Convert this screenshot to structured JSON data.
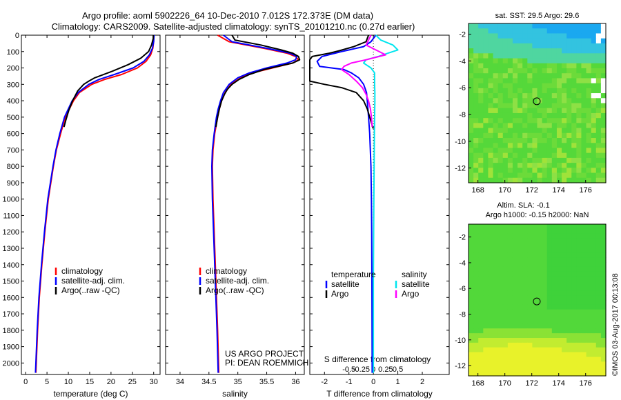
{
  "title_line1": "Argo profile: aoml 5902226_64 10-Dec-2010 7.012S 172.373E (DM data)",
  "title_line2": "Climatology: CARS2009. Satellite-adjusted climatology: synTS_20101210.nc (0.27d earlier)",
  "side_label": "©IMOS 03-Aug-2017 00:13:08",
  "credit_line1": "US ARGO PROJECT",
  "credit_line2": "PI: DEAN ROEMMICH",
  "colors": {
    "climatology": "#ff0000",
    "satellite": "#0000ff",
    "argo": "#000000",
    "sat_salinity": "#00e5ee",
    "argo_salinity": "#ff00ff"
  },
  "chart_data": [
    {
      "id": "temperature",
      "type": "line",
      "xlabel": "temperature (deg C)",
      "ylabel": "",
      "xlim": [
        -1,
        31.5
      ],
      "ylim": [
        2070,
        0
      ],
      "xticks": [
        0,
        5,
        10,
        15,
        20,
        25,
        30
      ],
      "yticks": [
        0,
        100,
        200,
        300,
        400,
        500,
        600,
        700,
        800,
        900,
        1000,
        1100,
        1200,
        1300,
        1400,
        1500,
        1600,
        1700,
        1800,
        1900,
        2000
      ],
      "legend": [
        "climatology",
        "satellite-adj. clim.",
        "Argo(..raw -QC)"
      ],
      "series": [
        {
          "name": "climatology",
          "color": "#ff0000",
          "depth": [
            0,
            40,
            80,
            120,
            160,
            200,
            240,
            270,
            300,
            350,
            400,
            500,
            600,
            700,
            800,
            1000,
            1200,
            1400,
            1600,
            1800,
            2000,
            2060
          ],
          "values": [
            30,
            30,
            29.8,
            29.3,
            28.2,
            26.2,
            22.5,
            18.5,
            15.5,
            12.6,
            11.2,
            9.3,
            8.2,
            7.2,
            6.5,
            5.3,
            4.5,
            3.8,
            3.2,
            2.8,
            2.5,
            2.4
          ]
        },
        {
          "name": "satellite-adj. clim.",
          "color": "#0000ff",
          "depth": [
            0,
            40,
            80,
            120,
            160,
            200,
            240,
            270,
            300,
            350,
            400,
            500,
            600,
            700,
            800,
            1000,
            1200,
            1400,
            1600,
            1800,
            2000,
            2060
          ],
          "values": [
            30.1,
            30,
            29.7,
            29,
            27.7,
            25.2,
            20.8,
            17.2,
            14.8,
            12.3,
            10.9,
            9.1,
            8,
            7.1,
            6.4,
            5.2,
            4.4,
            3.7,
            3.1,
            2.7,
            2.4,
            2.3
          ]
        },
        {
          "name": "Argo(..raw -QC)",
          "color": "#000000",
          "depth": [
            0,
            20,
            60,
            100,
            140,
            180,
            220,
            260,
            280,
            300,
            340,
            400,
            460,
            520,
            560
          ],
          "values": [
            29.9,
            29.9,
            29.5,
            28.8,
            27,
            24,
            20.3,
            16.2,
            14.8,
            13.6,
            12.2,
            11,
            10.1,
            9.4,
            9
          ]
        }
      ]
    },
    {
      "id": "salinity",
      "type": "line",
      "xlabel": "salinity",
      "ylabel": "",
      "xlim": [
        33.75,
        36.15
      ],
      "ylim": [
        2070,
        0
      ],
      "xticks": [
        34,
        34.5,
        35,
        35.5,
        36
      ],
      "xtick_labels": [
        "34",
        "34.5",
        "35",
        "35.5",
        "36"
      ],
      "legend": [
        "climatology",
        "satellite-adj. clim.",
        "Argo(..raw -QC)"
      ],
      "series": [
        {
          "name": "climatology",
          "color": "#ff0000",
          "depth": [
            0,
            40,
            80,
            110,
            130,
            150,
            170,
            200,
            230,
            260,
            300,
            350,
            400,
            450,
            500,
            600,
            700,
            800,
            1000,
            1200,
            1500,
            1800,
            2060
          ],
          "values": [
            34.65,
            34.85,
            35.45,
            35.85,
            36,
            36.05,
            35.95,
            35.6,
            35.25,
            35.05,
            34.88,
            34.78,
            34.72,
            34.68,
            34.65,
            34.6,
            34.57,
            34.56,
            34.57,
            34.59,
            34.62,
            34.65,
            34.67
          ]
        },
        {
          "name": "satellite-adj. clim.",
          "color": "#0000ff",
          "depth": [
            0,
            40,
            80,
            110,
            130,
            150,
            170,
            200,
            230,
            260,
            300,
            350,
            400,
            450,
            500,
            600,
            700,
            800,
            1000,
            1200,
            1500,
            1800,
            2060
          ],
          "values": [
            34.75,
            34.9,
            35.5,
            35.9,
            36.02,
            36,
            35.85,
            35.5,
            35.2,
            35,
            34.85,
            34.75,
            34.7,
            34.66,
            34.63,
            34.59,
            34.56,
            34.55,
            34.56,
            34.58,
            34.61,
            34.64,
            34.66
          ]
        },
        {
          "name": "Argo(..raw -QC)",
          "color": "#000000",
          "depth": [
            0,
            30,
            60,
            90,
            110,
            130,
            150,
            170,
            190,
            210,
            240,
            270,
            300,
            330,
            360,
            400,
            450,
            500,
            540,
            560
          ],
          "values": [
            34.9,
            34.95,
            35.4,
            35.75,
            35.95,
            36.05,
            36.07,
            35.95,
            35.7,
            35.45,
            35.2,
            35.02,
            34.9,
            34.82,
            34.77,
            34.72,
            34.68,
            34.65,
            34.63,
            34.62
          ]
        }
      ]
    },
    {
      "id": "difference",
      "type": "line",
      "xlabel": "T difference from climatology",
      "xlabel_top": "S difference from climatology",
      "xlim": [
        -2.6,
        3.1
      ],
      "ylim": [
        2070,
        0
      ],
      "xticks": [
        -2,
        -1,
        0,
        1,
        2
      ],
      "xtick_labels": [
        "-2",
        "-1",
        "0",
        "1",
        "2"
      ],
      "sticks": [
        -1,
        -0.5,
        0,
        0.5,
        1
      ],
      "stick_labels": [
        "-0.5",
        "-0.25",
        "0",
        "0.25",
        "0.5"
      ],
      "legend_temperature": {
        "heading": "temperature",
        "items": [
          "satellite",
          "Argo"
        ]
      },
      "legend_salinity": {
        "heading": "salinity",
        "items": [
          "satellite",
          "Argo"
        ]
      },
      "series": [
        {
          "name": "T satellite",
          "color": "#0000ff",
          "depth": [
            0,
            40,
            70,
            100,
            130,
            160,
            190,
            210,
            230,
            260,
            300,
            350,
            400,
            500,
            600,
            800,
            1000,
            1200,
            1500,
            2060
          ],
          "values": [
            0.1,
            -0.1,
            -0.4,
            -1.3,
            -2.1,
            -2.3,
            -2.2,
            -1.2,
            -0.9,
            -0.6,
            -0.4,
            -0.28,
            -0.25,
            -0.2,
            -0.15,
            -0.1,
            -0.08,
            -0.07,
            -0.06,
            -0.05
          ]
        },
        {
          "name": "T Argo",
          "color": "#000000",
          "depth": [
            0,
            40,
            70,
            95,
            110,
            130,
            150,
            170,
            200,
            220,
            250,
            280,
            300,
            320,
            350,
            400,
            450,
            500,
            550,
            570
          ],
          "values": [
            -0.2,
            -0.3,
            -0.8,
            -1.4,
            -1.8,
            -2.5,
            -2.6,
            -2.6,
            -2.6,
            -2.6,
            -2.6,
            -2.6,
            -2.0,
            -1.3,
            -0.7,
            -0.4,
            -0.25,
            -0.15,
            -0.05,
            0
          ]
        },
        {
          "name": "S satellite",
          "color": "#00e5ee",
          "depth": [
            0,
            30,
            60,
            90,
            110,
            130,
            150,
            170,
            200,
            230,
            260,
            300,
            350,
            400,
            500,
            600,
            800,
            1000,
            1200,
            1500,
            2060
          ],
          "values": [
            0.1,
            0.3,
            0.8,
            1.0,
            0.6,
            0.2,
            -0.3,
            -0.4,
            -0.1,
            0.05,
            0.05,
            0.05,
            0.06,
            0.06,
            0.05,
            0.04,
            0.03,
            0.02,
            0.01,
            0,
            0
          ]
        },
        {
          "name": "S Argo",
          "color": "#ff00ff",
          "depth": [
            0,
            30,
            60,
            90,
            120,
            150,
            170,
            190,
            210,
            240,
            280,
            320,
            360,
            400,
            450,
            500,
            560
          ],
          "values": [
            -0.1,
            -0.2,
            -0.3,
            0.1,
            0.5,
            -0.3,
            -0.9,
            -1.2,
            -1.3,
            -1.0,
            -0.7,
            -0.45,
            -0.3,
            -0.2,
            -0.12,
            -0.08,
            -0.05
          ]
        }
      ]
    },
    {
      "id": "sst_map",
      "type": "heatmap",
      "title": "sat. SST: 29.5  Argo: 29.6",
      "xlim": [
        167.3,
        177.5
      ],
      "ylim": [
        -13.1,
        -1.2
      ],
      "xticks": [
        168,
        170,
        172,
        174,
        176
      ],
      "yticks": [
        -2,
        -4,
        -6,
        -8,
        -10,
        -12
      ],
      "marker": {
        "lon": 172.373,
        "lat": -7.012
      }
    },
    {
      "id": "sla_map",
      "type": "heatmap",
      "title_line1": "Altim. SLA: -0.1",
      "title_line2": "Argo h1000: -0.15 h2000: NaN",
      "xlim": [
        167.3,
        177.5
      ],
      "ylim": [
        -12.8,
        -1
      ],
      "xticks": [
        168,
        170,
        172,
        174,
        176
      ],
      "yticks": [
        -2,
        -4,
        -6,
        -8,
        -10,
        -12
      ],
      "marker": {
        "lon": 172.373,
        "lat": -7.012
      }
    }
  ]
}
